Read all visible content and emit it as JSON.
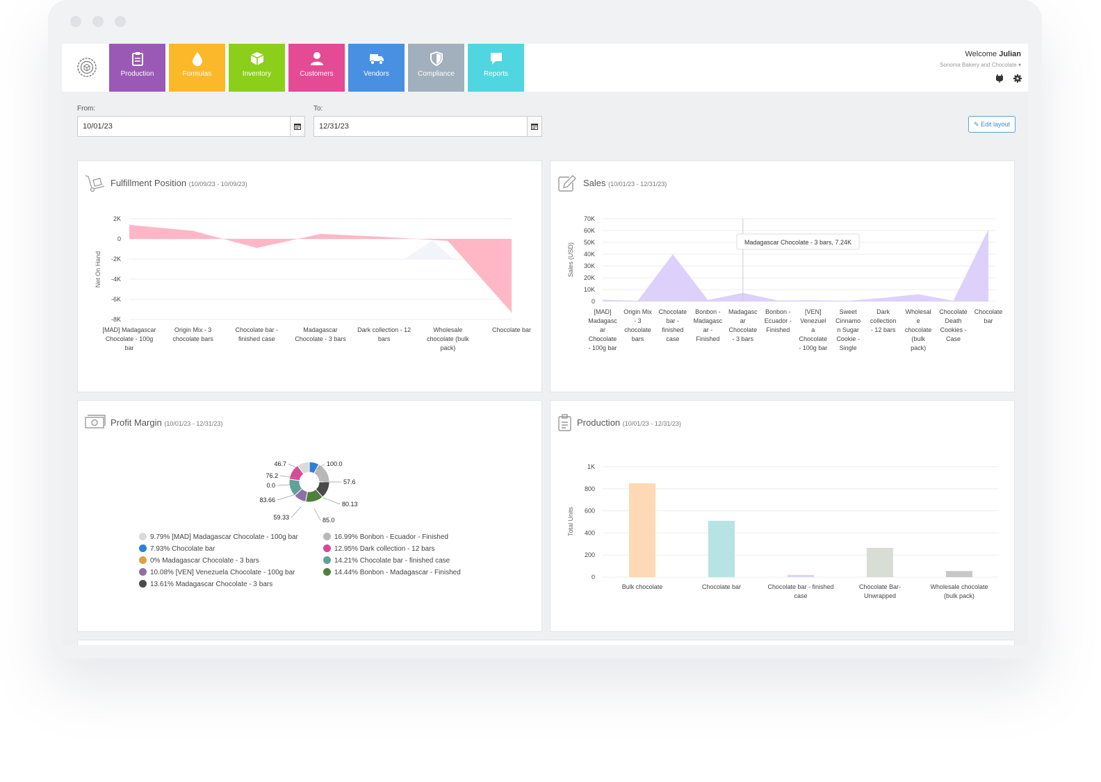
{
  "user": {
    "welcome": "Welcome",
    "name": "Julian",
    "company": "Sonoma Bakery and Chocolate"
  },
  "nav": [
    {
      "label": "Production",
      "color": "#9b59b6",
      "icon": "clipboard-icon"
    },
    {
      "label": "Formulas",
      "color": "#fbb829",
      "icon": "drop-icon"
    },
    {
      "label": "Inventory",
      "color": "#8ccf1a",
      "icon": "box-icon"
    },
    {
      "label": "Customers",
      "color": "#e54a95",
      "icon": "person-icon"
    },
    {
      "label": "Vendors",
      "color": "#4a90e2",
      "icon": "truck-icon"
    },
    {
      "label": "Compliance",
      "color": "#a2afbc",
      "icon": "shield-icon"
    },
    {
      "label": "Reports",
      "color": "#4fd6e0",
      "icon": "chat-icon"
    }
  ],
  "filters": {
    "from_label": "From:",
    "from_value": "10/01/23",
    "to_label": "To:",
    "to_value": "12/31/23",
    "edit_layout": "Edit layout"
  },
  "panels": {
    "fulfillment": {
      "title": "Fulfillment Position",
      "range": "(10/09/23 - 10/09/23)"
    },
    "sales": {
      "title": "Sales",
      "range": "(10/01/23 - 12/31/23)"
    },
    "profit": {
      "title": "Profit Margin",
      "range": "(10/01/23 - 12/31/23)"
    },
    "production": {
      "title": "Production",
      "range": "(10/01/23 - 12/31/23)"
    }
  },
  "chart_data": [
    {
      "type": "area",
      "ylabel": "Net On Hand",
      "ylim": [
        -8000,
        2000
      ],
      "yticks": [
        "2K",
        "0",
        "-2K",
        "-4K",
        "-6K",
        "-8K"
      ],
      "categories": [
        "[MAD] Madagascar Chocolate - 100g bar",
        "Origin Mix - 3 chocolate bars",
        "Chocolate bar - finished case",
        "Madagascar Chocolate - 3 bars",
        "Dark collection - 12 bars",
        "Wholesale chocolate (bulk pack)",
        "Chocolate bar"
      ],
      "values": [
        1400,
        800,
        -900,
        500,
        200,
        -200,
        -7300
      ],
      "color": "#ffb3c3"
    },
    {
      "type": "area",
      "ylabel": "Sales (USD)",
      "ylim": [
        0,
        70000
      ],
      "yticks": [
        "70K",
        "60K",
        "50K",
        "40K",
        "30K",
        "20K",
        "10K",
        "0"
      ],
      "categories": [
        "[MAD] Madagascar Chocolate - 100g bar",
        "Origin Mix - 3 chocolate bars",
        "Chocolate bar - finished case",
        "Bonbon - Madagascar - Finished",
        "Madagascar Chocolate - 3 bars",
        "Bonbon - Ecuador - Finished",
        "[VEN] Venezuela Chocolate - 100g bar",
        "Sweet Cinnamon Sugar Cookie - Single",
        "Dark collection - 12 bars",
        "Wholesale chocolate (bulk pack)",
        "Chocolate Death Cookies - Case",
        "Chocolate bar"
      ],
      "tick_labels": [
        [
          "[MAD]",
          "Madagasc",
          "ar",
          "Chocolate",
          "- 100g bar"
        ],
        [
          "Origin Mix",
          "- 3",
          "chocolate",
          "bars"
        ],
        [
          "Chocolate",
          "bar -",
          "finished",
          "case"
        ],
        [
          "Bonbon -",
          "Madagasc",
          "ar -",
          "Finished"
        ],
        [
          "Madagasc",
          "ar",
          "Chocolate",
          "- 3 bars"
        ],
        [
          "Bonbon -",
          "Ecuador -",
          "Finished"
        ],
        [
          "[VEN]",
          "Venezuel",
          "a",
          "Chocolate",
          "- 100g bar"
        ],
        [
          "Sweet",
          "Cinnamo",
          "n Sugar",
          "Cookie -",
          "Single"
        ],
        [
          "Dark",
          "collection",
          "- 12 bars"
        ],
        [
          "Wholesal",
          "e",
          "chocolate",
          "(bulk",
          "pack)"
        ],
        [
          "Chocolate",
          "Death",
          "Cookies -",
          "Case"
        ],
        [
          "Chocolate",
          "bar"
        ]
      ],
      "values": [
        1500,
        500,
        40000,
        1200,
        7240,
        800,
        1000,
        500,
        3000,
        6000,
        500,
        61000
      ],
      "tooltip": "Madagascar Chocolate - 3 bars, 7.24K",
      "color": "#ddd0fb"
    },
    {
      "type": "pie",
      "labels": [
        "46.7",
        "100.0",
        "57.6",
        "80.13",
        "85.0",
        "59.33",
        "83.66",
        "0.0",
        "76.2"
      ],
      "slices": [
        {
          "label": "[MAD] Madagascar Chocolate - 100g bar",
          "percent": 9.79,
          "text": "9.79% [MAD] Madagascar Chocolate - 100g bar",
          "color": "#d8dcd6"
        },
        {
          "label": "Chocolate bar",
          "percent": 7.93,
          "text": "7.93% Chocolate bar",
          "color": "#2f7ed8"
        },
        {
          "label": "Madagascar Chocolate - 3 bars",
          "percent": 0,
          "text": "0% Madagascar Chocolate - 3 bars",
          "color": "#e0a040"
        },
        {
          "label": "[VEN] Venezuela Chocolate - 100g bar",
          "percent": 10.08,
          "text": "10.08% [VEN] Venezuela Chocolate - 100g bar",
          "color": "#8e6fa6"
        },
        {
          "label": "Madagascar Chocolate - 3 bars",
          "percent": 13.61,
          "text": "13.61% Madagascar Chocolate - 3 bars",
          "color": "#4a4a4a"
        },
        {
          "label": "Bonbon - Ecuador - Finished",
          "percent": 16.99,
          "text": "16.99% Bonbon - Ecuador - Finished",
          "color": "#b8b8b8"
        },
        {
          "label": "Dark collection - 12 bars",
          "percent": 12.95,
          "text": "12.95% Dark collection - 12 bars",
          "color": "#d64a97"
        },
        {
          "label": "Chocolate bar - finished case",
          "percent": 14.21,
          "text": "14.21% Chocolate bar - finished case",
          "color": "#5fa09a"
        },
        {
          "label": "Bonbon - Madagascar - Finished",
          "percent": 14.44,
          "text": "14.44% Bonbon - Madagascar - Finished",
          "color": "#4f7f3a"
        }
      ]
    },
    {
      "type": "bar",
      "ylabel": "Total Units",
      "ylim": [
        0,
        1000
      ],
      "yticks": [
        "1K",
        "800",
        "600",
        "400",
        "200",
        "0"
      ],
      "categories": [
        "Bulk chocolate",
        "Chocolate bar",
        "Chocolate bar - finished case",
        "Chocolate Bar- Unwrapped",
        "Wholesale chocolate (bulk pack)"
      ],
      "tick_labels": [
        [
          "Bulk chocolate"
        ],
        [
          "Chocolate bar"
        ],
        [
          "Chocolate bar - finished",
          "case"
        ],
        [
          "Chocolate Bar-",
          "Unwrapped"
        ],
        [
          "Wholesale chocolate",
          "(bulk pack)"
        ]
      ],
      "values": [
        850,
        510,
        20,
        265,
        55
      ],
      "colors": [
        "#fdd9b5",
        "#b7e3e4",
        "#ded2f7",
        "#d8ded5",
        "#c8c8c8"
      ]
    }
  ]
}
